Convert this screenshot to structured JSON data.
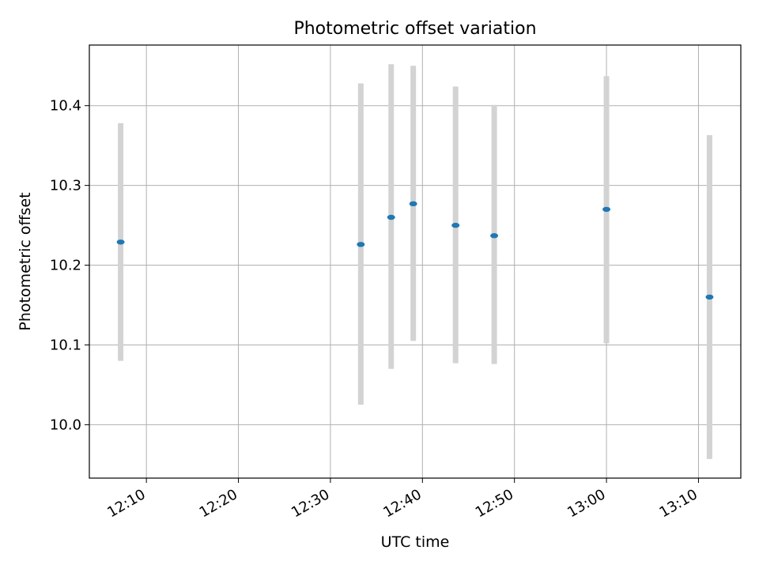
{
  "chart_data": {
    "type": "scatter",
    "title": "Photometric offset variation",
    "xlabel": "UTC time",
    "ylabel": "Photometric offset",
    "x_tick_labels": [
      "12:10",
      "12:20",
      "12:30",
      "12:40",
      "12:50",
      "13:00",
      "13:10"
    ],
    "y_tick_labels": [
      "10.0",
      "10.1",
      "10.2",
      "10.3",
      "10.4"
    ],
    "xlim": [
      "12:03:48",
      "13:14:36"
    ],
    "ylim": [
      9.933,
      10.476
    ],
    "grid": true,
    "series": [
      {
        "x": [
          "12:07:12",
          "12:33:18",
          "12:36:36",
          "12:39:00",
          "12:43:36",
          "12:47:48",
          "13:00:00",
          "13:11:12"
        ],
        "y": [
          10.229,
          10.226,
          10.26,
          10.277,
          10.25,
          10.237,
          10.27,
          10.16
        ],
        "err_low": [
          10.08,
          10.025,
          10.07,
          10.105,
          10.077,
          10.076,
          10.102,
          9.957
        ],
        "err_high": [
          10.378,
          10.428,
          10.452,
          10.45,
          10.424,
          10.401,
          10.437,
          10.363
        ],
        "marker_color": "#1f77b4",
        "errorbar_color": "#d3d3d3"
      }
    ]
  }
}
